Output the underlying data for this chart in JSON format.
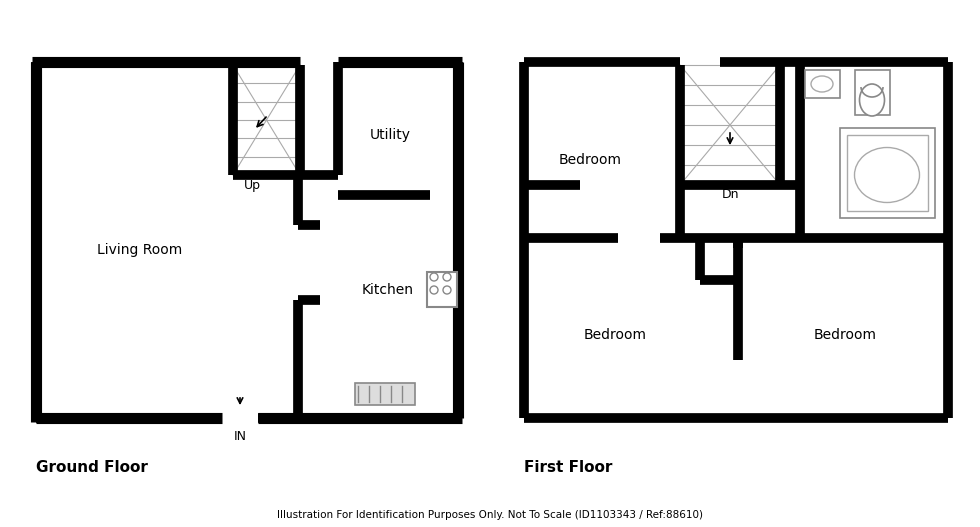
{
  "bg_color": "#ffffff",
  "wall_color": "#000000",
  "wall_lw": 8,
  "thin_lw": 1.5,
  "grid_line_color": "#aaaaaa",
  "fixture_color": "#cccccc",
  "fixture_lw": 1.2,
  "ground_floor_label": "Ground Floor",
  "first_floor_label": "First Floor",
  "footer_text": "Illustration For Identification Purposes Only. Not To Scale (ID1103343 / Ref:88610)",
  "rooms": {
    "living_room": "Living Room",
    "kitchen": "Kitchen",
    "utility": "Utility",
    "up": "Up",
    "in_label": "IN",
    "dn": "Dn",
    "bedroom1": "Bedroom",
    "bedroom2": "Bedroom",
    "bedroom3": "Bedroom"
  }
}
